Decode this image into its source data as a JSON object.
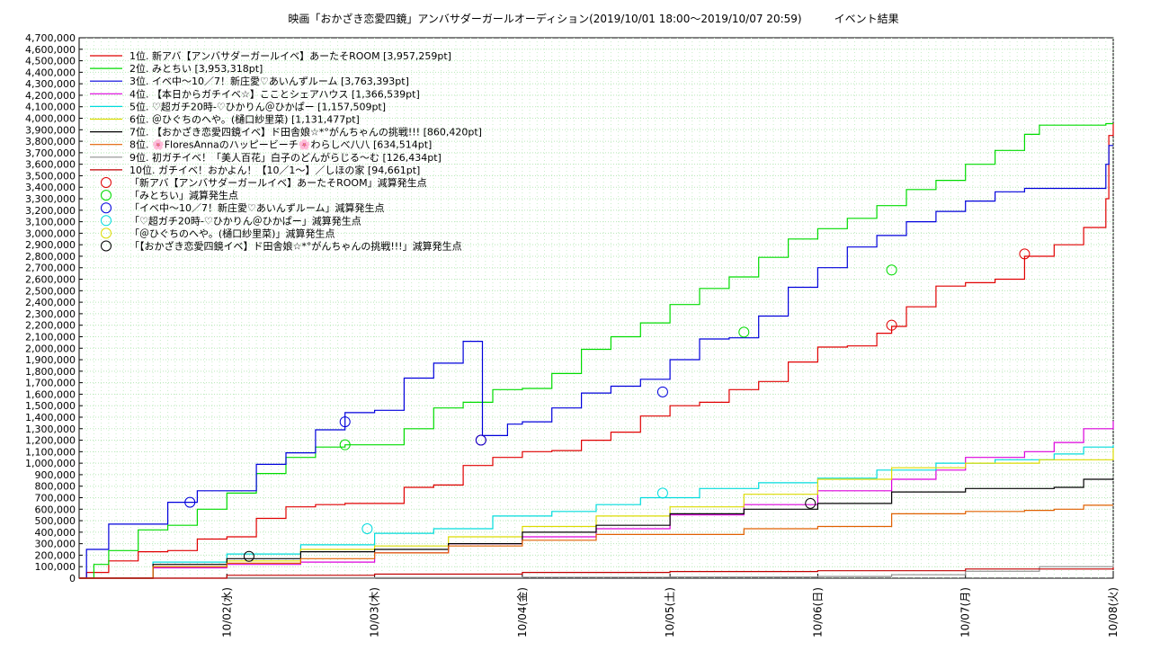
{
  "chart_data": {
    "type": "line",
    "title": "映画「おかざき恋愛四鏡」アンバサダーガールオーディション(2019/10/01 18:00～2019/10/07 20:59)　　　イベント結果",
    "xlabel": "",
    "ylabel": "",
    "ylim": [
      0,
      4700000
    ],
    "y_ticks": [
      0,
      100000,
      200000,
      300000,
      400000,
      500000,
      600000,
      700000,
      800000,
      900000,
      1000000,
      1100000,
      1200000,
      1300000,
      1400000,
      1500000,
      1600000,
      1700000,
      1800000,
      1900000,
      2000000,
      2100000,
      2200000,
      2300000,
      2400000,
      2500000,
      2600000,
      2700000,
      2800000,
      2900000,
      3000000,
      3100000,
      3200000,
      3300000,
      3400000,
      3500000,
      3600000,
      3700000,
      3800000,
      3900000,
      4000000,
      4100000,
      4200000,
      4300000,
      4400000,
      4500000,
      4600000,
      4700000
    ],
    "y_tick_labels": [
      "0",
      "100,000",
      "200,000",
      "300,000",
      "400,000",
      "500,000",
      "600,000",
      "700,000",
      "800,000",
      "900,000",
      "1,000,000",
      "1,100,000",
      "1,200,000",
      "1,300,000",
      "1,400,000",
      "1,500,000",
      "1,600,000",
      "1,700,000",
      "1,800,000",
      "1,900,000",
      "2,000,000",
      "2,100,000",
      "2,200,000",
      "2,300,000",
      "2,400,000",
      "2,500,000",
      "2,600,000",
      "2,700,000",
      "2,800,000",
      "2,900,000",
      "3,000,000",
      "3,100,000",
      "3,200,000",
      "3,300,000",
      "3,400,000",
      "3,500,000",
      "3,600,000",
      "3,700,000",
      "3,800,000",
      "3,900,000",
      "4,000,000",
      "4,100,000",
      "4,200,000",
      "4,300,000",
      "4,400,000",
      "4,500,000",
      "4,600,000",
      "4,700,000"
    ],
    "x_range_days": [
      0,
      7
    ],
    "x_ticks": [
      {
        "day": 1,
        "label": "10/02(水)"
      },
      {
        "day": 2,
        "label": "10/03(木)"
      },
      {
        "day": 3,
        "label": "10/04(金)"
      },
      {
        "day": 4,
        "label": "10/05(土)"
      },
      {
        "day": 5,
        "label": "10/06(日)"
      },
      {
        "day": 6,
        "label": "10/07(月)"
      },
      {
        "day": 7,
        "label": "10/08(火)"
      }
    ],
    "grid": true,
    "legend_position": "top-left",
    "series": [
      {
        "name": "1位. 新アバ【アンバサダーガールイベ】あーたそROOM [3,957,259pt]",
        "color": "#e00000",
        "points": [
          [
            0,
            0
          ],
          [
            0.05,
            50000
          ],
          [
            0.2,
            150000
          ],
          [
            0.4,
            230000
          ],
          [
            0.6,
            240000
          ],
          [
            0.8,
            340000
          ],
          [
            1.0,
            360000
          ],
          [
            1.2,
            520000
          ],
          [
            1.4,
            620000
          ],
          [
            1.6,
            640000
          ],
          [
            1.8,
            650000
          ],
          [
            2.0,
            650000
          ],
          [
            2.2,
            790000
          ],
          [
            2.4,
            810000
          ],
          [
            2.6,
            980000
          ],
          [
            2.8,
            1050000
          ],
          [
            3.0,
            1100000
          ],
          [
            3.2,
            1110000
          ],
          [
            3.4,
            1200000
          ],
          [
            3.6,
            1270000
          ],
          [
            3.8,
            1410000
          ],
          [
            4.0,
            1500000
          ],
          [
            4.2,
            1530000
          ],
          [
            4.4,
            1640000
          ],
          [
            4.6,
            1710000
          ],
          [
            4.8,
            1880000
          ],
          [
            5.0,
            2010000
          ],
          [
            5.2,
            2020000
          ],
          [
            5.4,
            2130000
          ],
          [
            5.5,
            2190000
          ],
          [
            5.6,
            2360000
          ],
          [
            5.8,
            2540000
          ],
          [
            6.0,
            2570000
          ],
          [
            6.2,
            2600000
          ],
          [
            6.4,
            2800000
          ],
          [
            6.6,
            2900000
          ],
          [
            6.8,
            3050000
          ],
          [
            6.95,
            3300000
          ],
          [
            6.97,
            3850000
          ],
          [
            7.0,
            3957259
          ]
        ]
      },
      {
        "name": "2位. みとちい [3,953,318pt]",
        "color": "#00dc00",
        "points": [
          [
            0,
            0
          ],
          [
            0.1,
            120000
          ],
          [
            0.2,
            240000
          ],
          [
            0.4,
            420000
          ],
          [
            0.6,
            460000
          ],
          [
            0.8,
            600000
          ],
          [
            1.0,
            740000
          ],
          [
            1.2,
            910000
          ],
          [
            1.4,
            1050000
          ],
          [
            1.6,
            1140000
          ],
          [
            1.8,
            1160000
          ],
          [
            2.0,
            1160000
          ],
          [
            2.2,
            1300000
          ],
          [
            2.4,
            1480000
          ],
          [
            2.6,
            1530000
          ],
          [
            2.8,
            1640000
          ],
          [
            3.0,
            1650000
          ],
          [
            3.2,
            1780000
          ],
          [
            3.4,
            1990000
          ],
          [
            3.6,
            2100000
          ],
          [
            3.8,
            2220000
          ],
          [
            4.0,
            2380000
          ],
          [
            4.2,
            2520000
          ],
          [
            4.4,
            2620000
          ],
          [
            4.6,
            2790000
          ],
          [
            4.8,
            2950000
          ],
          [
            5.0,
            3040000
          ],
          [
            5.2,
            3130000
          ],
          [
            5.4,
            3240000
          ],
          [
            5.6,
            3380000
          ],
          [
            5.8,
            3460000
          ],
          [
            6.0,
            3600000
          ],
          [
            6.2,
            3720000
          ],
          [
            6.4,
            3860000
          ],
          [
            6.5,
            3940000
          ],
          [
            6.95,
            3953318
          ],
          [
            7.0,
            3953318
          ]
        ]
      },
      {
        "name": "3位. イベ中～10／7！新庄愛♡あいんずルーム [3,763,393pt]",
        "color": "#0000dc",
        "points": [
          [
            0,
            0
          ],
          [
            0.05,
            250000
          ],
          [
            0.2,
            470000
          ],
          [
            0.4,
            470000
          ],
          [
            0.6,
            660000
          ],
          [
            0.8,
            760000
          ],
          [
            1.0,
            760000
          ],
          [
            1.2,
            990000
          ],
          [
            1.4,
            1090000
          ],
          [
            1.6,
            1290000
          ],
          [
            1.8,
            1440000
          ],
          [
            2.0,
            1460000
          ],
          [
            2.2,
            1740000
          ],
          [
            2.4,
            1870000
          ],
          [
            2.6,
            2060000
          ],
          [
            2.72,
            2060000
          ],
          [
            2.73,
            1240000
          ],
          [
            2.9,
            1340000
          ],
          [
            3.0,
            1360000
          ],
          [
            3.2,
            1480000
          ],
          [
            3.4,
            1610000
          ],
          [
            3.6,
            1670000
          ],
          [
            3.8,
            1730000
          ],
          [
            4.0,
            1900000
          ],
          [
            4.2,
            2080000
          ],
          [
            4.4,
            2090000
          ],
          [
            4.6,
            2280000
          ],
          [
            4.8,
            2530000
          ],
          [
            5.0,
            2700000
          ],
          [
            5.2,
            2880000
          ],
          [
            5.4,
            2980000
          ],
          [
            5.6,
            3100000
          ],
          [
            5.8,
            3190000
          ],
          [
            6.0,
            3280000
          ],
          [
            6.2,
            3360000
          ],
          [
            6.4,
            3390000
          ],
          [
            6.95,
            3600000
          ],
          [
            6.97,
            3763393
          ],
          [
            7.0,
            3763393
          ]
        ]
      },
      {
        "name": "4位. 【本日からガチイベ☆】こことシェアハウス [1,366,539pt]",
        "color": "#dc00dc",
        "points": [
          [
            0,
            0
          ],
          [
            0.5,
            90000
          ],
          [
            1.0,
            120000
          ],
          [
            1.5,
            140000
          ],
          [
            2.0,
            220000
          ],
          [
            2.5,
            300000
          ],
          [
            3.0,
            360000
          ],
          [
            3.5,
            430000
          ],
          [
            4.0,
            550000
          ],
          [
            4.5,
            640000
          ],
          [
            5.0,
            760000
          ],
          [
            5.5,
            860000
          ],
          [
            5.8,
            940000
          ],
          [
            6.0,
            1050000
          ],
          [
            6.4,
            1100000
          ],
          [
            6.6,
            1180000
          ],
          [
            6.8,
            1300000
          ],
          [
            7.0,
            1366539
          ]
        ]
      },
      {
        "name": "5位. ♡超ガチ20時-♡ひかりん＠ひかぱー [1,157,509pt]",
        "color": "#00dcdc",
        "points": [
          [
            0,
            0
          ],
          [
            0.5,
            140000
          ],
          [
            1.0,
            210000
          ],
          [
            1.5,
            290000
          ],
          [
            2.0,
            390000
          ],
          [
            2.4,
            430000
          ],
          [
            2.8,
            540000
          ],
          [
            3.2,
            580000
          ],
          [
            3.5,
            640000
          ],
          [
            3.8,
            700000
          ],
          [
            4.2,
            780000
          ],
          [
            4.6,
            830000
          ],
          [
            5.0,
            870000
          ],
          [
            5.4,
            940000
          ],
          [
            5.8,
            1000000
          ],
          [
            6.2,
            1030000
          ],
          [
            6.6,
            1080000
          ],
          [
            6.8,
            1140000
          ],
          [
            7.0,
            1157509
          ]
        ]
      },
      {
        "name": "6位. ＠ひぐちのへや。(樋口紗里菜) [1,131,477pt]",
        "color": "#dcdc00",
        "points": [
          [
            0,
            0
          ],
          [
            0.5,
            100000
          ],
          [
            1.0,
            150000
          ],
          [
            1.5,
            250000
          ],
          [
            2.0,
            280000
          ],
          [
            2.5,
            360000
          ],
          [
            3.0,
            450000
          ],
          [
            3.5,
            540000
          ],
          [
            4.0,
            620000
          ],
          [
            4.5,
            730000
          ],
          [
            5.0,
            860000
          ],
          [
            5.5,
            960000
          ],
          [
            6.0,
            1000000
          ],
          [
            6.5,
            1030000
          ],
          [
            7.0,
            1131477
          ]
        ]
      },
      {
        "name": "7位. 【おかざき恋愛四鏡イベ】ド田舎娘☆*°がんちゃんの挑戦!!! [860,420pt]",
        "color": "#000000",
        "points": [
          [
            0,
            0
          ],
          [
            0.5,
            120000
          ],
          [
            1.0,
            170000
          ],
          [
            1.5,
            230000
          ],
          [
            2.0,
            250000
          ],
          [
            2.5,
            300000
          ],
          [
            3.0,
            400000
          ],
          [
            3.5,
            460000
          ],
          [
            4.0,
            560000
          ],
          [
            4.5,
            600000
          ],
          [
            5.0,
            650000
          ],
          [
            5.5,
            750000
          ],
          [
            6.0,
            780000
          ],
          [
            6.6,
            790000
          ],
          [
            6.8,
            860420
          ],
          [
            7.0,
            860420
          ]
        ]
      },
      {
        "name": "8位. 🌸FloresAnnaのハッピービーチ🌸わらしべ八八 [634,514pt]",
        "color": "#e06000",
        "points": [
          [
            0,
            0
          ],
          [
            0.5,
            100000
          ],
          [
            1.0,
            130000
          ],
          [
            1.5,
            170000
          ],
          [
            2.0,
            220000
          ],
          [
            2.5,
            280000
          ],
          [
            3.0,
            330000
          ],
          [
            3.5,
            380000
          ],
          [
            4.0,
            380000
          ],
          [
            4.5,
            430000
          ],
          [
            5.0,
            450000
          ],
          [
            5.5,
            560000
          ],
          [
            6.0,
            580000
          ],
          [
            6.4,
            590000
          ],
          [
            6.6,
            600000
          ],
          [
            6.8,
            634514
          ],
          [
            7.0,
            634514
          ]
        ]
      },
      {
        "name": "9位. 初ガチイベ！「美人百花」白子のどんがらじる～む [126,434pt]",
        "color": "#909090",
        "points": [
          [
            0,
            0
          ],
          [
            1.0,
            3000
          ],
          [
            2.0,
            5000
          ],
          [
            3.0,
            8000
          ],
          [
            4.0,
            10000
          ],
          [
            5.0,
            15000
          ],
          [
            5.5,
            30000
          ],
          [
            6.0,
            60000
          ],
          [
            6.5,
            100000
          ],
          [
            7.0,
            126434
          ]
        ]
      },
      {
        "name": "10位. ガチイベ！おかよん！【10／1～】／しほの家 [94,661pt]",
        "color": "#c00000",
        "points": [
          [
            0,
            0
          ],
          [
            1.0,
            25000
          ],
          [
            2.0,
            35000
          ],
          [
            3.0,
            50000
          ],
          [
            4.0,
            58000
          ],
          [
            5.0,
            65000
          ],
          [
            6.0,
            80000
          ],
          [
            7.0,
            94661
          ]
        ]
      }
    ],
    "markers": [
      {
        "name": "「新アバ【アンバサダーガールイベ】あーたそROOM」減算発生点",
        "color": "#e00000",
        "points": [
          [
            2.72,
            1200000
          ],
          [
            5.5,
            2200000
          ],
          [
            6.4,
            2820000
          ]
        ]
      },
      {
        "name": "「みとちい」減算発生点",
        "color": "#00dc00",
        "points": [
          [
            1.8,
            1160000
          ],
          [
            4.5,
            2140000
          ],
          [
            5.5,
            2680000
          ]
        ]
      },
      {
        "name": "「イベ中～10／7！新庄愛♡あいんずルーム」減算発生点",
        "color": "#0000dc",
        "points": [
          [
            0.75,
            660000
          ],
          [
            1.8,
            1360000
          ],
          [
            2.72,
            1200000
          ],
          [
            3.95,
            1620000
          ]
        ]
      },
      {
        "name": "「♡超ガチ20時-♡ひかりん＠ひかぱー」減算発生点",
        "color": "#00dcdc",
        "points": [
          [
            1.95,
            430000
          ],
          [
            3.95,
            740000
          ]
        ]
      },
      {
        "name": "「＠ひぐちのへや。(樋口紗里菜)」減算発生点",
        "color": "#dcdc00",
        "points": []
      },
      {
        "name": "「【おかざき恋愛四鏡イベ】ド田舎娘☆*°がんちゃんの挑戦!!!」減算発生点",
        "color": "#000000",
        "points": [
          [
            1.15,
            190000
          ],
          [
            4.95,
            650000
          ]
        ]
      }
    ]
  }
}
